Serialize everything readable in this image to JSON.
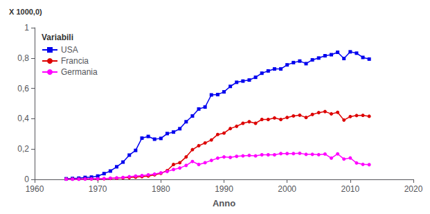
{
  "chart_data": {
    "type": "line",
    "xlabel": "Anno",
    "ylabel": "X 1000,0)",
    "legend_title": "Variabili",
    "legend": "upper left",
    "grid": false,
    "xlim": [
      1960,
      2020
    ],
    "xticks": [
      1960,
      1970,
      1980,
      1990,
      2000,
      2010,
      2020
    ],
    "ylim": [
      0,
      1
    ],
    "yticks": [
      0,
      {
        "value": 0.2,
        "label": "0,2"
      },
      {
        "value": 0.4,
        "label": "0,4"
      },
      {
        "value": 0.6,
        "label": "0,6"
      },
      {
        "value": 0.8,
        "label": "0,8"
      },
      1
    ],
    "x": [
      1965,
      1966,
      1967,
      1968,
      1969,
      1970,
      1971,
      1972,
      1973,
      1974,
      1975,
      1976,
      1977,
      1978,
      1979,
      1980,
      1981,
      1982,
      1983,
      1984,
      1985,
      1986,
      1987,
      1988,
      1989,
      1990,
      1991,
      1992,
      1993,
      1994,
      1995,
      1996,
      1997,
      1998,
      1999,
      2000,
      2001,
      2002,
      2003,
      2004,
      2005,
      2006,
      2007,
      2008,
      2009,
      2010,
      2011,
      2012,
      2013
    ],
    "series": [
      {
        "name": "USA",
        "color": "#0000EE",
        "marker": "square",
        "values": [
          0.004,
          0.006,
          0.008,
          0.013,
          0.015,
          0.022,
          0.038,
          0.055,
          0.083,
          0.114,
          0.16,
          0.191,
          0.272,
          0.283,
          0.265,
          0.27,
          0.302,
          0.312,
          0.334,
          0.38,
          0.418,
          0.464,
          0.477,
          0.557,
          0.559,
          0.577,
          0.613,
          0.64,
          0.648,
          0.655,
          0.673,
          0.7,
          0.715,
          0.728,
          0.728,
          0.755,
          0.77,
          0.78,
          0.763,
          0.788,
          0.8,
          0.815,
          0.822,
          0.838,
          0.797,
          0.841,
          0.832,
          0.804,
          0.793
        ]
      },
      {
        "name": "Francia",
        "color": "#DD0000",
        "marker": "circle",
        "values": [
          0.002,
          0.002,
          0.002,
          0.003,
          0.003,
          0.003,
          0.004,
          0.006,
          0.008,
          0.01,
          0.012,
          0.015,
          0.018,
          0.022,
          0.03,
          0.04,
          0.058,
          0.098,
          0.11,
          0.148,
          0.196,
          0.222,
          0.24,
          0.26,
          0.296,
          0.305,
          0.335,
          0.35,
          0.37,
          0.38,
          0.37,
          0.395,
          0.395,
          0.405,
          0.395,
          0.408,
          0.418,
          0.423,
          0.408,
          0.428,
          0.44,
          0.447,
          0.432,
          0.442,
          0.391,
          0.414,
          0.421,
          0.422,
          0.416
        ]
      },
      {
        "name": "Germania",
        "color": "#FF00FF",
        "marker": "circle",
        "values": [
          0.001,
          0.001,
          0.001,
          0.002,
          0.003,
          0.004,
          0.005,
          0.008,
          0.01,
          0.013,
          0.018,
          0.022,
          0.025,
          0.03,
          0.035,
          0.043,
          0.052,
          0.065,
          0.075,
          0.092,
          0.118,
          0.098,
          0.11,
          0.125,
          0.14,
          0.148,
          0.145,
          0.152,
          0.155,
          0.158,
          0.155,
          0.162,
          0.162,
          0.162,
          0.17,
          0.17,
          0.17,
          0.172,
          0.165,
          0.165,
          0.163,
          0.167,
          0.14,
          0.168,
          0.134,
          0.141,
          0.108,
          0.099,
          0.097
        ]
      }
    ]
  }
}
